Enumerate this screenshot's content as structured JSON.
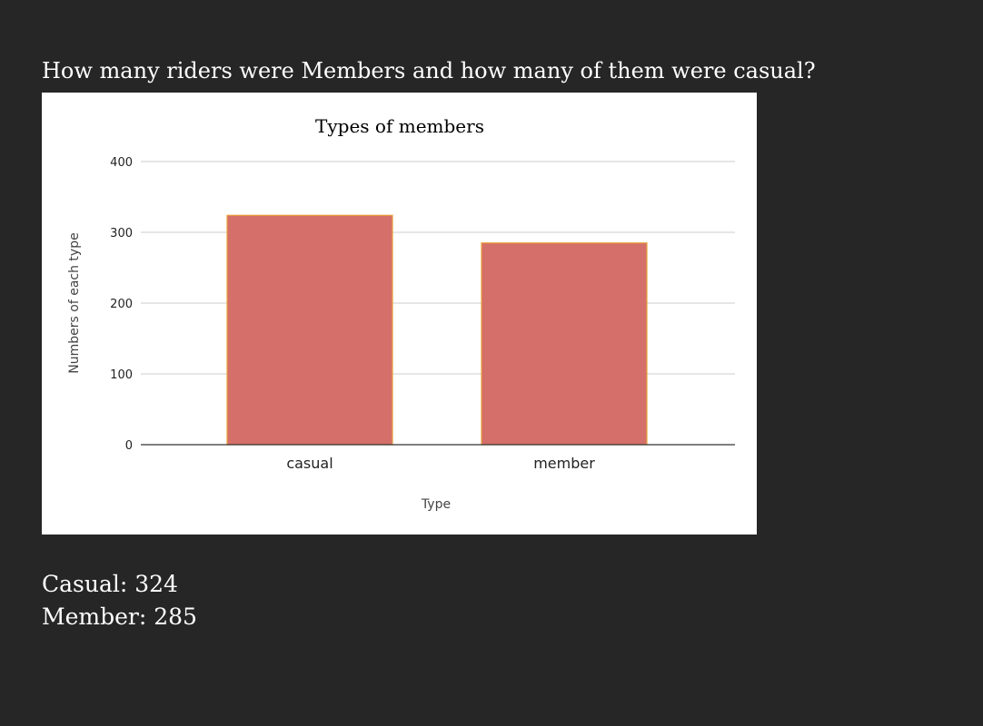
{
  "heading": "How many riders were Members and how many of them were casual?",
  "chart_data": {
    "type": "bar",
    "title": "Types of members",
    "xlabel": "Type",
    "ylabel": "Numbers of each type",
    "categories": [
      "casual",
      "member"
    ],
    "values": [
      324,
      285
    ],
    "ylim": [
      0,
      400
    ],
    "yticks": [
      0,
      100,
      200,
      300,
      400
    ],
    "grid": true,
    "legend": "none",
    "bar_color": "#d46f69",
    "bar_edge_color": "#e8a13a"
  },
  "summary": [
    "Casual: 324",
    "Member: 285"
  ]
}
